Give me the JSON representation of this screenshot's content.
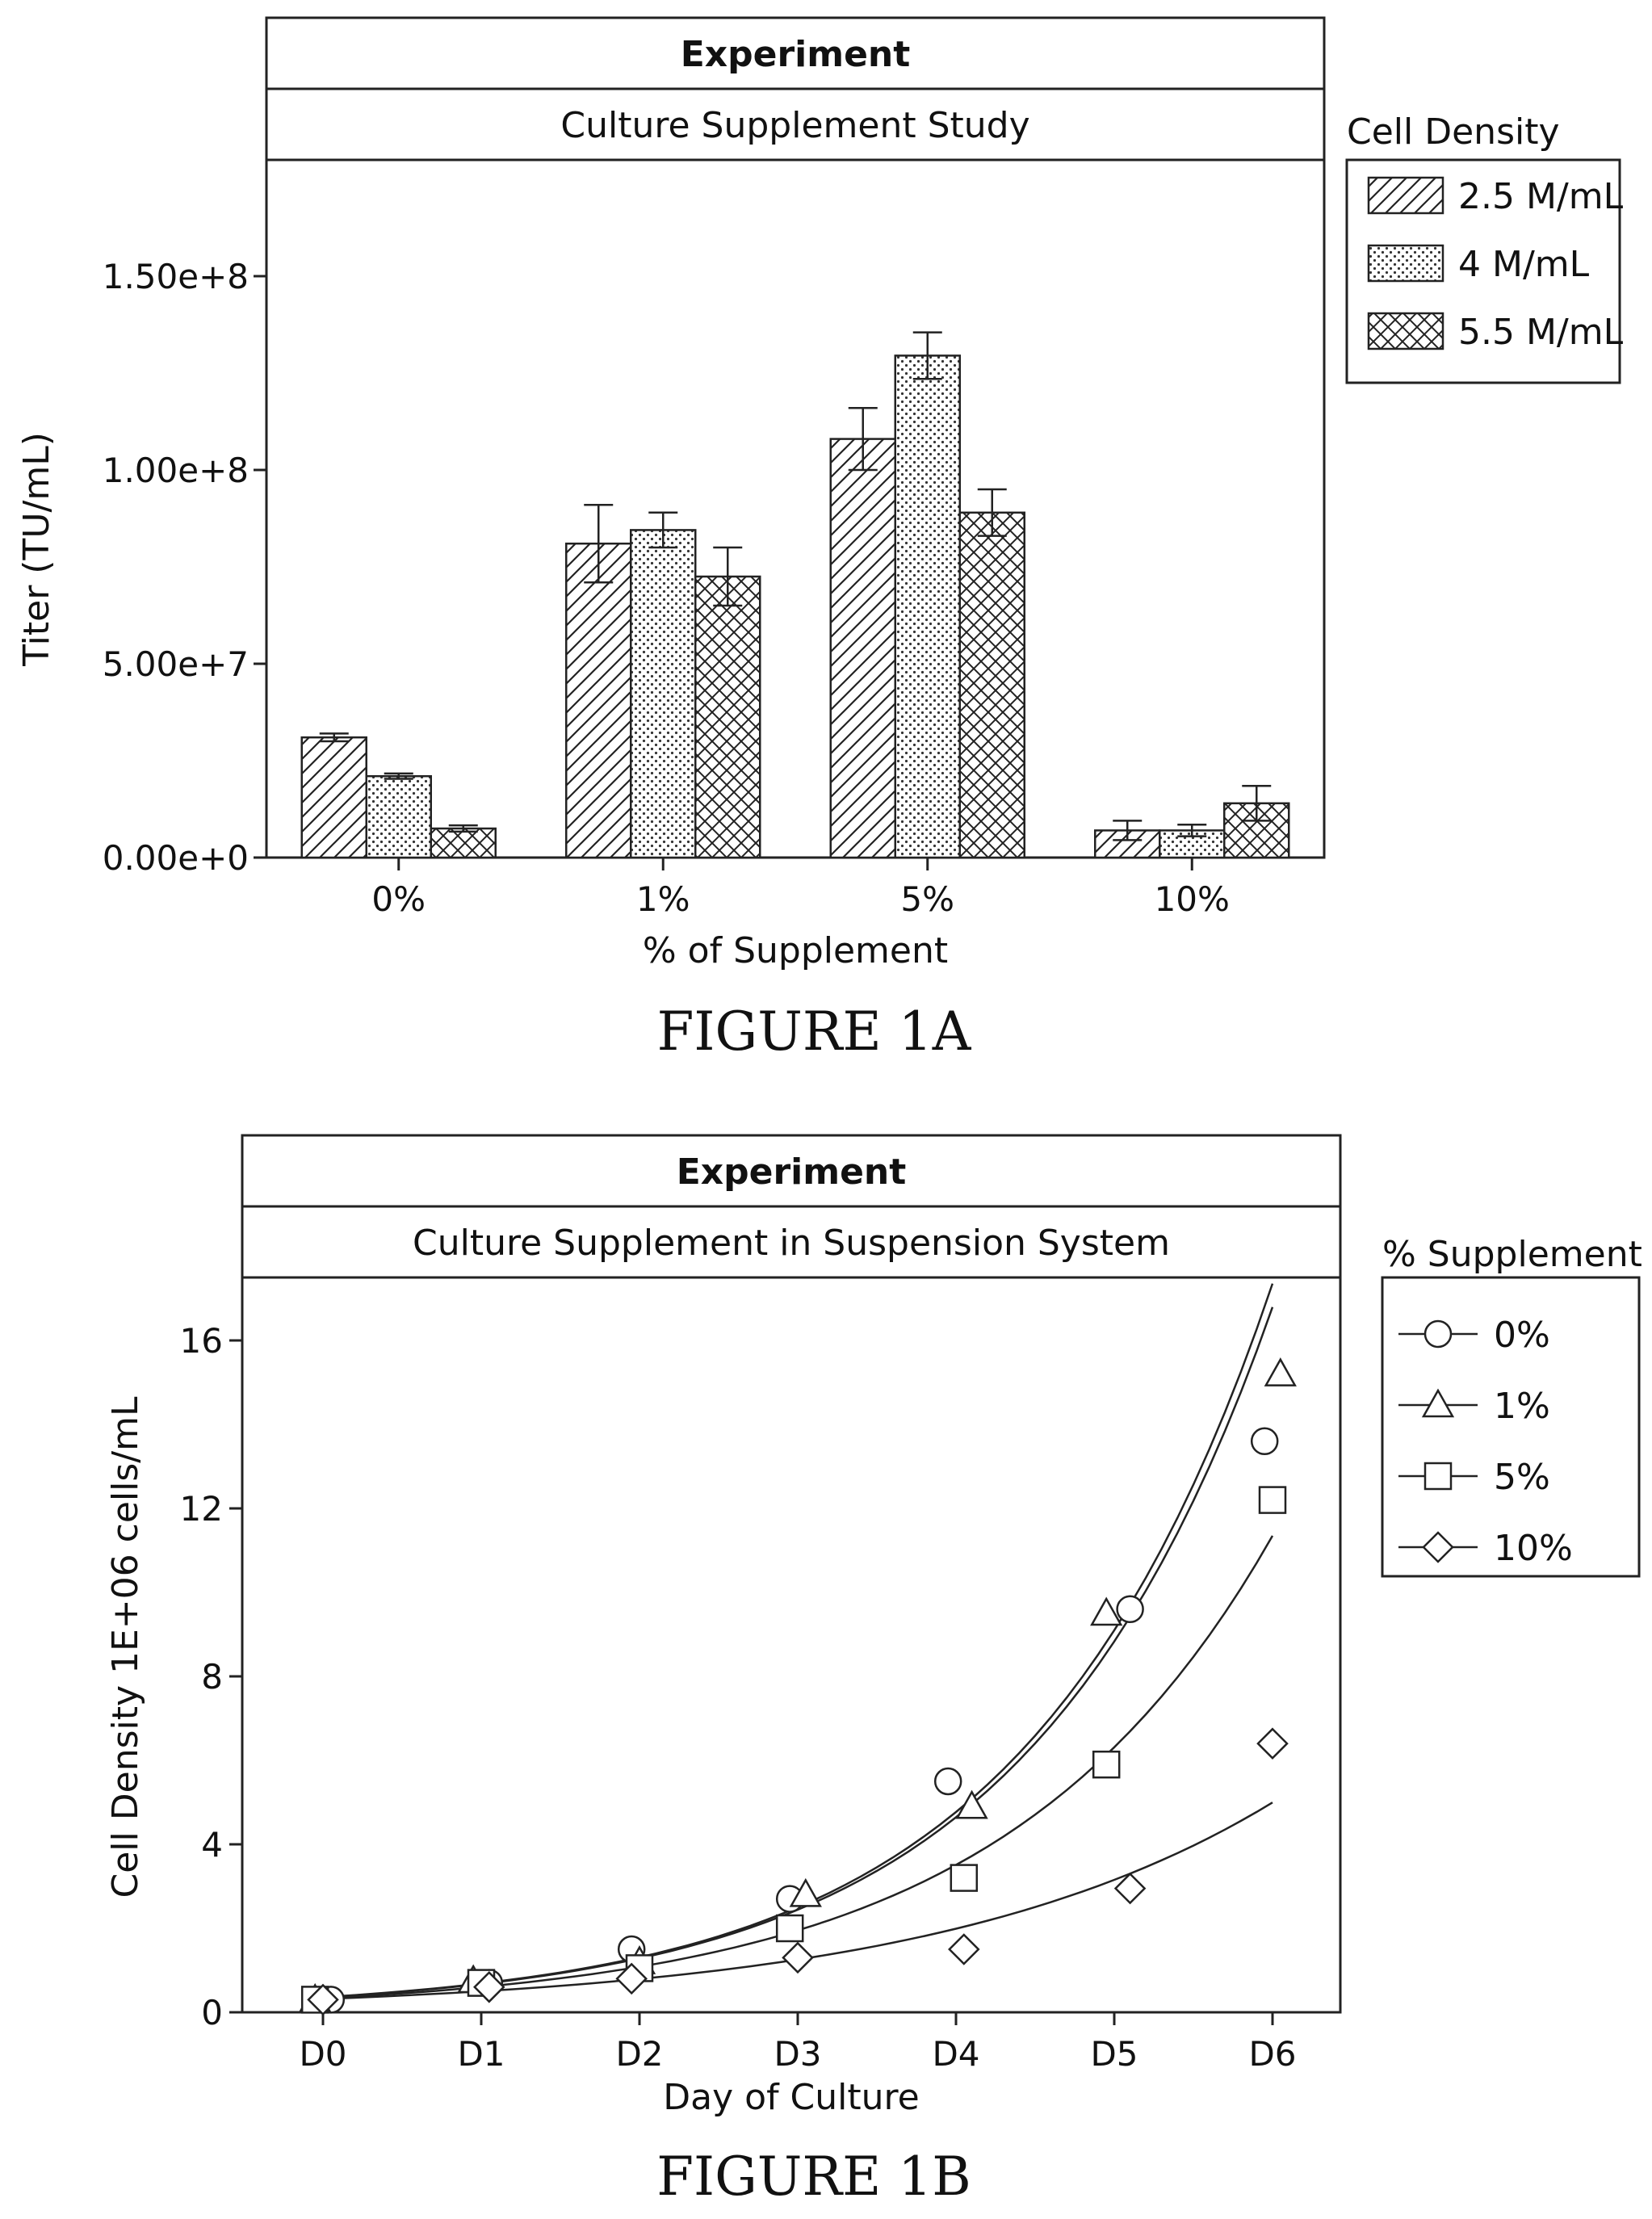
{
  "chart_data": [
    {
      "type": "bar",
      "figure_label": "FIGURE 1A",
      "header": "Experiment",
      "title": "Culture Supplement Study",
      "xlabel": "% of Supplement",
      "ylabel": "Titer (TU/mL)",
      "categories": [
        "0%",
        "1%",
        "5%",
        "10%"
      ],
      "ylim": [
        0,
        180000000
      ],
      "yticks": [
        0,
        50000000,
        100000000,
        150000000
      ],
      "ytick_labels": [
        "0.00e+0",
        "5.00e+7",
        "1.00e+8",
        "1.50e+8"
      ],
      "legend_title": "Cell Density",
      "legend_position": "right",
      "series": [
        {
          "name": "2.5 M/mL",
          "pattern": "hatch-diagonal",
          "values": [
            31000000,
            81000000,
            108000000,
            7000000
          ],
          "errors": [
            1000000,
            10000000,
            8000000,
            2500000
          ]
        },
        {
          "name": "4 M/mL",
          "pattern": "dots",
          "values": [
            21000000,
            84500000,
            129500000,
            7000000
          ],
          "errors": [
            700000,
            4500000,
            6000000,
            1500000
          ]
        },
        {
          "name": "5.5 M/mL",
          "pattern": "crosshatch",
          "values": [
            7500000,
            72500000,
            89000000,
            14000000
          ],
          "errors": [
            800000,
            7500000,
            6000000,
            4500000
          ]
        }
      ]
    },
    {
      "type": "line",
      "figure_label": "FIGURE 1B",
      "header": "Experiment",
      "title": "Culture Supplement in Suspension System",
      "xlabel": "Day of Culture",
      "ylabel": "Cell Density 1E+06 cells/mL",
      "categories": [
        "D0",
        "D1",
        "D2",
        "D3",
        "D4",
        "D5",
        "D6"
      ],
      "ylim": [
        0,
        17.5
      ],
      "yticks": [
        0,
        4,
        8,
        12,
        16
      ],
      "ytick_labels": [
        "0",
        "4",
        "8",
        "12",
        "16"
      ],
      "legend_title": "% Supplement",
      "legend_position": "right",
      "series": [
        {
          "name": "0%",
          "marker": "circle",
          "x": [
            0.05,
            1.05,
            1.95,
            2.95,
            3.95,
            5.1,
            5.95
          ],
          "values": [
            0.3,
            0.7,
            1.5,
            2.7,
            5.5,
            9.6,
            13.6
          ]
        },
        {
          "name": "1%",
          "marker": "triangle",
          "x": [
            -0.05,
            0.95,
            2.0,
            3.05,
            4.1,
            4.95,
            6.05
          ],
          "values": [
            0.3,
            0.75,
            1.2,
            2.8,
            4.9,
            9.5,
            15.2
          ]
        },
        {
          "name": "5%",
          "marker": "square",
          "x": [
            -0.05,
            1.0,
            2.0,
            2.95,
            4.05,
            4.95,
            6.0
          ],
          "values": [
            0.3,
            0.7,
            1.05,
            2.0,
            3.2,
            5.9,
            12.2
          ]
        },
        {
          "name": "10%",
          "marker": "diamond",
          "x": [
            0.0,
            1.05,
            1.95,
            3.0,
            4.05,
            5.1,
            6.0
          ],
          "values": [
            0.3,
            0.6,
            0.8,
            1.3,
            1.5,
            2.95,
            6.4
          ]
        }
      ]
    }
  ]
}
